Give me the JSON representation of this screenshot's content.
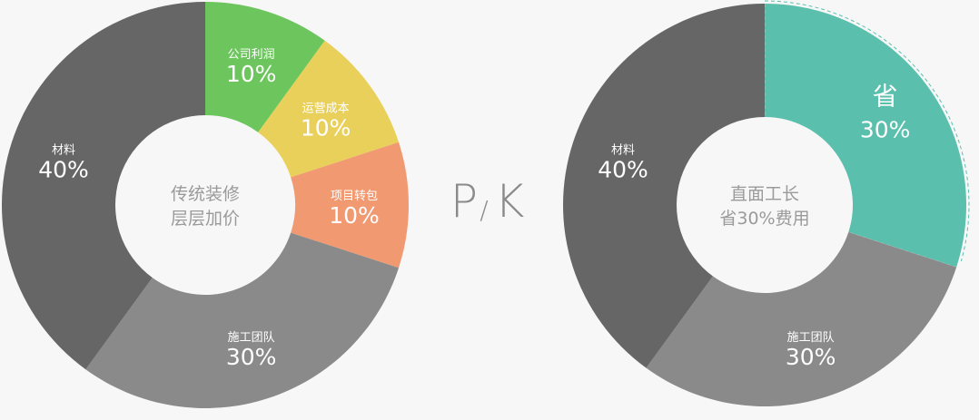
{
  "chart_data": [
    {
      "type": "pie",
      "center_text": [
        "传统装修",
        "层层加价"
      ],
      "slices": [
        {
          "label": "公司利润",
          "value": 10,
          "value_label": "10%",
          "color": "#6cc65d"
        },
        {
          "label": "运营成本",
          "value": 10,
          "value_label": "10%",
          "color": "#e9d05a"
        },
        {
          "label": "项目转包",
          "value": 10,
          "value_label": "10%",
          "color": "#f19a72"
        },
        {
          "label": "施工团队",
          "value": 30,
          "value_label": "30%",
          "color": "#8a8a8a"
        },
        {
          "label": "材料",
          "value": 40,
          "value_label": "40%",
          "color": "#666666"
        }
      ]
    },
    {
      "type": "pie",
      "center_text": [
        "直面工长",
        "省30%费用"
      ],
      "slices": [
        {
          "label": "省",
          "value": 30,
          "value_label": "30%",
          "color": "#5ac0ad"
        },
        {
          "label": "施工团队",
          "value": 30,
          "value_label": "30%",
          "color": "#8a8a8a"
        },
        {
          "label": "材料",
          "value": 40,
          "value_label": "40%",
          "color": "#666666"
        }
      ]
    }
  ],
  "pk": {
    "left": "P",
    "slash": "/",
    "right": "K"
  }
}
